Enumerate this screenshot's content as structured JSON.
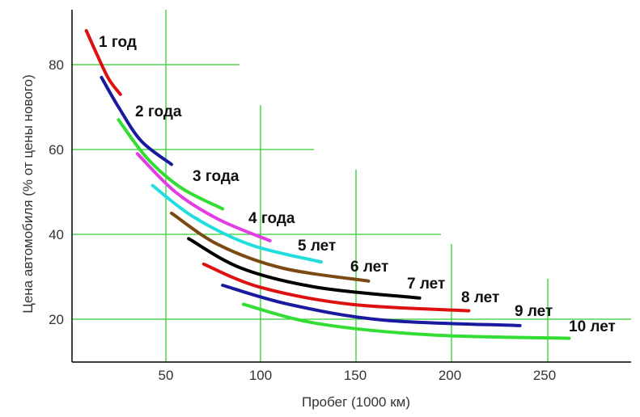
{
  "chart_data": {
    "type": "line",
    "title": "",
    "xlabel": "Пробег (1000 км)",
    "ylabel": "Цена автомобиля (% от цены нового)",
    "xlim": [
      0,
      290
    ],
    "ylim": [
      10,
      93
    ],
    "xticks": [
      50,
      100,
      150,
      200,
      250
    ],
    "yticks": [
      20,
      40,
      60,
      80
    ],
    "xtick_labels": [
      "50",
      "100",
      "150",
      "200",
      "250"
    ],
    "ytick_labels": [
      "20",
      "40",
      "60",
      "80"
    ],
    "grid": "partial (green crosshair lines at tick values)",
    "grid_color": "#33cc33",
    "axis_color": "#000000",
    "series": [
      {
        "name": "1 год",
        "color": "#dd1111",
        "points": [
          [
            8,
            88
          ],
          [
            14,
            82
          ],
          [
            20,
            76.5
          ],
          [
            26,
            73
          ]
        ]
      },
      {
        "name": "2 года",
        "color": "#1a1aa0",
        "points": [
          [
            16,
            77
          ],
          [
            25,
            70
          ],
          [
            37,
            62
          ],
          [
            53,
            56.5
          ]
        ]
      },
      {
        "name": "3 года",
        "color": "#33dd33",
        "points": [
          [
            25,
            67
          ],
          [
            40,
            58
          ],
          [
            58,
            51
          ],
          [
            80,
            46
          ]
        ]
      },
      {
        "name": "4 года",
        "color": "#e23ce2",
        "points": [
          [
            35,
            59
          ],
          [
            55,
            50
          ],
          [
            78,
            43.5
          ],
          [
            105,
            38.5
          ]
        ]
      },
      {
        "name": "5 лет",
        "color": "#22dddd",
        "points": [
          [
            43,
            51.5
          ],
          [
            65,
            44
          ],
          [
            95,
            37.5
          ],
          [
            132,
            33.5
          ]
        ]
      },
      {
        "name": "6 лет",
        "color": "#7a4a12",
        "points": [
          [
            53,
            45
          ],
          [
            78,
            37.5
          ],
          [
            112,
            32
          ],
          [
            157,
            29
          ]
        ]
      },
      {
        "name": "7 лет",
        "color": "#000000",
        "points": [
          [
            62,
            39
          ],
          [
            90,
            32
          ],
          [
            130,
            27.5
          ],
          [
            184,
            25
          ]
        ]
      },
      {
        "name": "8 лет",
        "color": "#dd1111",
        "points": [
          [
            70,
            33
          ],
          [
            100,
            27.5
          ],
          [
            148,
            23.5
          ],
          [
            210,
            22
          ]
        ]
      },
      {
        "name": "9 лет",
        "color": "#1a1aa0",
        "points": [
          [
            80,
            28
          ],
          [
            115,
            23.5
          ],
          [
            165,
            19.8
          ],
          [
            237,
            18.5
          ]
        ]
      },
      {
        "name": "10 лет",
        "color": "#33dd33",
        "points": [
          [
            91,
            23.5
          ],
          [
            130,
            19
          ],
          [
            190,
            16.3
          ],
          [
            263,
            15.5
          ]
        ]
      }
    ]
  }
}
